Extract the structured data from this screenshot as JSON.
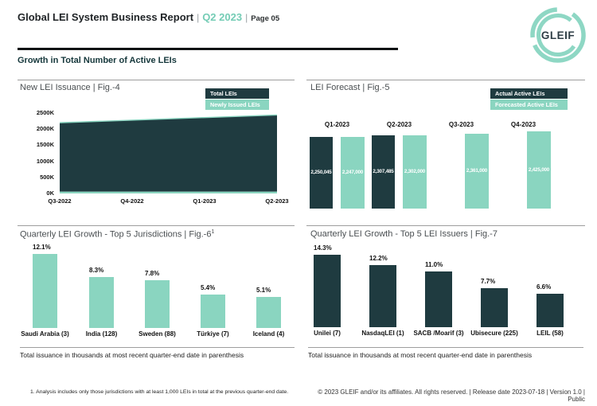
{
  "header": {
    "title": "Global LEI System Business Report",
    "separator": "|",
    "period": "Q2 2023",
    "page": "Page 05"
  },
  "logo": {
    "text": "GLEIF"
  },
  "section_title": "Growth in Total Number of Active LEIs",
  "colors": {
    "dark_teal": "#1f3b40",
    "mint": "#8ad5c0",
    "accent_text": "#74ccb5"
  },
  "chart_data": [
    {
      "id": "fig4",
      "type": "area",
      "title": "New LEI Issuance | Fig.-4",
      "x": [
        "Q3-2022",
        "Q4-2022",
        "Q1-2023",
        "Q2-2023"
      ],
      "series": [
        {
          "name": "Total LEIs",
          "color": "#1f3b40",
          "values": [
            2200000,
            2280000,
            2360000,
            2440000
          ]
        },
        {
          "name": "Newly Issued LEIs",
          "color": "#8ad5c0",
          "values": [
            60000,
            60000,
            60000,
            60000
          ]
        }
      ],
      "ylim": [
        0,
        2500000
      ],
      "yticks": [
        "2500K",
        "2000K",
        "1500K",
        "1000K",
        "500K",
        "0K"
      ],
      "legend": [
        "Total LEIs",
        "Newly Issued LEIs"
      ],
      "legend_position": "top-right",
      "grid": false
    },
    {
      "id": "fig5",
      "type": "bar",
      "title": "LEI Forecast | Fig.-5",
      "categories": [
        "Q1-2023",
        "Q2-2023",
        "Q3-2023",
        "Q4-2023"
      ],
      "series": [
        {
          "name": "Actual Active LEIs",
          "color": "#1f3b40",
          "values": [
            2250045,
            2307485,
            null,
            null
          ],
          "labels": [
            "2,250,045",
            "2,307,485",
            null,
            null
          ]
        },
        {
          "name": "Forecasted Active LEIs",
          "color": "#8ad5c0",
          "values": [
            2247000,
            2302000,
            2361000,
            2425000
          ],
          "labels": [
            "2,247,000",
            "2,302,000",
            "2,361,000",
            "2,425,000"
          ]
        }
      ],
      "legend": [
        "Actual Active LEIs",
        "Forecasted Active LEIs"
      ],
      "legend_position": "top-right",
      "category_labels_position": "above-bars"
    },
    {
      "id": "fig6",
      "type": "bar",
      "title": "Quarterly LEI Growth - Top 5 Jurisdictions | Fig.-6",
      "title_superscript": "1",
      "categories": [
        "Saudi Arabia (3)",
        "India (128)",
        "Sweden (88)",
        "Türkiye (7)",
        "Iceland (4)"
      ],
      "values": [
        12.1,
        8.3,
        7.8,
        5.4,
        5.1
      ],
      "value_labels": [
        "12.1%",
        "8.3%",
        "7.8%",
        "5.4%",
        "5.1%"
      ],
      "bar_color": "#8ad5c0"
    },
    {
      "id": "fig7",
      "type": "bar",
      "title": "Quarterly LEI Growth - Top 5 LEI Issuers | Fig.-7",
      "categories": [
        "Unilei (7)",
        "NasdaqLEI (1)",
        "SACB /Moarif (3)",
        "Ubisecure (225)",
        "LEIL (58)"
      ],
      "values": [
        14.3,
        12.2,
        11.0,
        7.7,
        6.6
      ],
      "value_labels": [
        "14.3%",
        "12.2%",
        "11.0%",
        "7.7%",
        "6.6%"
      ],
      "bar_color": "#1f3b40"
    }
  ],
  "captions": {
    "left": "Total issuance in thousands at most recent quarter-end date in parenthesis",
    "right": "Total issuance in thousands at most recent quarter-end date in parenthesis"
  },
  "footnote": "1. Analysis includes only those jurisdictions with at least 1,000 LEIs in total at the previous quarter-end date.",
  "footer": "© 2023 GLEIF and/or its affiliates. All rights reserved. | Release date 2023-07-18 | Version 1.0 | Public"
}
